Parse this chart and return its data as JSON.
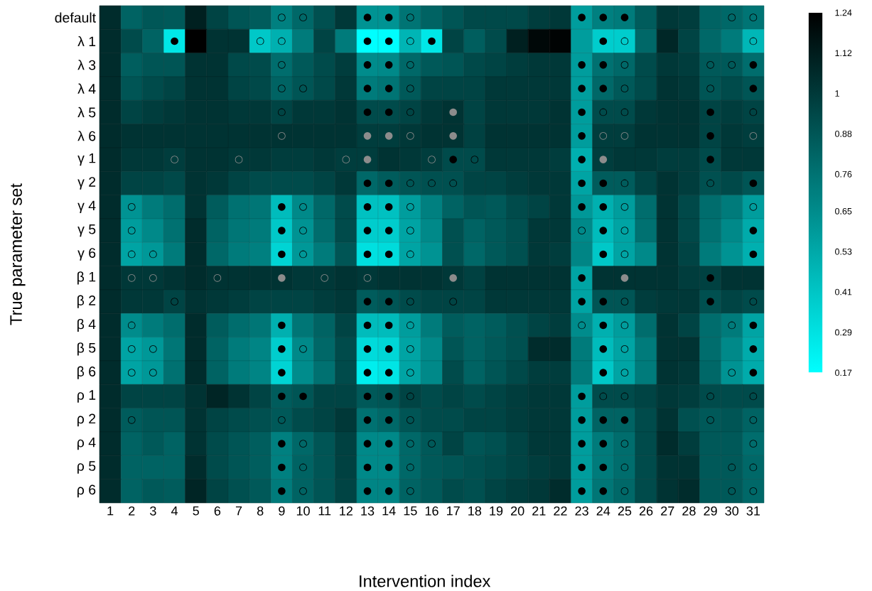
{
  "chart_data": {
    "type": "heatmap",
    "xlabel": "Intervention index",
    "ylabel": "True parameter set",
    "categories": [
      "1",
      "2",
      "3",
      "4",
      "5",
      "6",
      "7",
      "8",
      "9",
      "10",
      "11",
      "12",
      "13",
      "14",
      "15",
      "16",
      "17",
      "18",
      "19",
      "20",
      "21",
      "22",
      "23",
      "24",
      "25",
      "26",
      "27",
      "28",
      "29",
      "30",
      "31"
    ],
    "y_categories": [
      "default",
      "λ 1",
      "λ 3",
      "λ 4",
      "λ 5",
      "λ 6",
      "γ 1",
      "γ 2",
      "γ 4",
      "γ 5",
      "γ 6",
      "β 1",
      "β 2",
      "β 4",
      "β 5",
      "β 6",
      "ρ 1",
      "ρ 2",
      "ρ 4",
      "ρ 5",
      "ρ 6"
    ],
    "clim": [
      0.17,
      1.24
    ],
    "cticks": [
      0.17,
      0.29,
      0.41,
      0.53,
      0.65,
      0.76,
      0.88,
      1,
      1.12,
      1.24
    ],
    "cells": [
      [
        1.05,
        0.82,
        0.87,
        0.86,
        1.1,
        0.95,
        0.88,
        0.85,
        0.7,
        0.8,
        0.9,
        1.0,
        0.62,
        0.62,
        0.75,
        0.82,
        0.88,
        0.93,
        0.93,
        0.93,
        0.98,
        1.0,
        0.58,
        0.7,
        0.72,
        0.85,
        1.0,
        0.98,
        0.82,
        0.8,
        0.75
      ],
      [
        1.05,
        0.92,
        0.82,
        0.27,
        1.24,
        1.02,
        1.02,
        0.4,
        0.5,
        0.72,
        0.95,
        0.72,
        0.17,
        0.18,
        0.48,
        0.27,
        0.95,
        0.84,
        0.92,
        1.1,
        1.2,
        1.22,
        0.58,
        0.38,
        0.38,
        0.8,
        1.07,
        0.95,
        0.8,
        0.72,
        0.47
      ],
      [
        1.05,
        0.84,
        0.88,
        0.88,
        1.02,
        1.02,
        0.93,
        0.92,
        0.78,
        0.86,
        0.92,
        0.98,
        0.65,
        0.66,
        0.8,
        0.86,
        0.88,
        0.93,
        0.95,
        0.98,
        1.0,
        1.0,
        0.58,
        0.76,
        0.8,
        0.92,
        1.0,
        0.98,
        0.86,
        0.86,
        0.78
      ],
      [
        1.05,
        0.88,
        0.92,
        0.95,
        1.02,
        1.02,
        0.95,
        0.93,
        0.82,
        0.88,
        0.93,
        1.0,
        0.72,
        0.75,
        0.86,
        0.95,
        0.95,
        0.95,
        1.0,
        1.0,
        1.0,
        1.0,
        0.58,
        0.8,
        0.86,
        0.92,
        1.02,
        1.0,
        0.88,
        0.92,
        0.88
      ],
      [
        1.05,
        0.95,
        0.98,
        1.0,
        1.02,
        1.02,
        1.0,
        1.0,
        0.95,
        1.0,
        1.0,
        1.02,
        0.92,
        0.92,
        0.95,
        1.0,
        1.02,
        0.95,
        1.0,
        1.0,
        1.0,
        1.02,
        0.58,
        0.92,
        0.92,
        1.0,
        1.02,
        1.02,
        0.95,
        0.98,
        0.95
      ],
      [
        1.05,
        1.02,
        1.02,
        1.02,
        1.02,
        1.02,
        1.02,
        1.02,
        1.02,
        1.02,
        1.02,
        1.02,
        0.98,
        0.98,
        1.0,
        1.02,
        1.02,
        0.96,
        1.02,
        1.02,
        1.02,
        1.02,
        0.58,
        0.98,
        0.98,
        1.02,
        1.02,
        1.02,
        0.95,
        1.0,
        0.98
      ],
      [
        1.05,
        1.0,
        1.0,
        0.98,
        1.02,
        1.02,
        1.0,
        1.0,
        0.98,
        0.98,
        1.0,
        0.98,
        0.98,
        1.02,
        1.0,
        0.98,
        0.92,
        0.92,
        1.0,
        1.0,
        1.0,
        0.98,
        0.5,
        0.98,
        1.0,
        1.0,
        0.98,
        0.98,
        0.92,
        1.0,
        1.0
      ],
      [
        1.05,
        0.95,
        0.95,
        0.93,
        1.02,
        1.0,
        0.95,
        0.92,
        0.92,
        0.92,
        0.95,
        1.0,
        0.8,
        0.85,
        0.88,
        0.9,
        0.9,
        0.95,
        0.95,
        0.98,
        1.0,
        1.0,
        0.55,
        0.85,
        0.85,
        0.95,
        1.02,
        0.98,
        0.9,
        0.93,
        0.88
      ],
      [
        1.05,
        0.62,
        0.72,
        0.78,
        1.02,
        0.85,
        0.76,
        0.74,
        0.45,
        0.66,
        0.8,
        0.92,
        0.43,
        0.43,
        0.58,
        0.7,
        0.82,
        0.88,
        0.86,
        0.92,
        0.95,
        1.0,
        0.6,
        0.5,
        0.58,
        0.78,
        1.02,
        0.93,
        0.78,
        0.72,
        0.58
      ],
      [
        1.05,
        0.58,
        0.66,
        0.76,
        1.05,
        0.82,
        0.74,
        0.72,
        0.4,
        0.62,
        0.78,
        0.92,
        0.38,
        0.38,
        0.55,
        0.66,
        0.9,
        0.82,
        0.86,
        0.9,
        1.0,
        1.0,
        0.66,
        0.45,
        0.55,
        0.76,
        1.02,
        0.93,
        0.76,
        0.66,
        0.52
      ],
      [
        1.05,
        0.55,
        0.6,
        0.72,
        1.05,
        0.8,
        0.72,
        0.7,
        0.35,
        0.6,
        0.72,
        0.88,
        0.3,
        0.32,
        0.55,
        0.62,
        0.9,
        0.8,
        0.86,
        0.9,
        1.0,
        0.98,
        0.68,
        0.4,
        0.55,
        0.66,
        1.02,
        0.95,
        0.72,
        0.62,
        0.5
      ],
      [
        1.05,
        1.0,
        1.0,
        1.02,
        1.05,
        1.02,
        1.02,
        1.02,
        1.02,
        1.0,
        1.0,
        1.02,
        1.0,
        1.02,
        1.02,
        1.02,
        1.0,
        0.96,
        1.02,
        1.02,
        1.02,
        1.02,
        0.55,
        1.02,
        1.02,
        1.02,
        1.02,
        0.98,
        0.96,
        1.02,
        1.02
      ],
      [
        1.05,
        1.0,
        1.0,
        0.95,
        1.02,
        1.0,
        0.98,
        0.95,
        0.95,
        0.95,
        0.98,
        1.0,
        0.85,
        0.88,
        0.92,
        0.95,
        0.95,
        0.95,
        1.0,
        1.0,
        1.0,
        1.0,
        0.55,
        0.88,
        0.88,
        0.98,
        1.0,
        1.0,
        0.9,
        0.95,
        0.92
      ],
      [
        1.05,
        0.65,
        0.72,
        0.78,
        1.05,
        0.85,
        0.78,
        0.74,
        0.5,
        0.74,
        0.82,
        0.95,
        0.45,
        0.45,
        0.58,
        0.72,
        0.85,
        0.82,
        0.85,
        0.9,
        0.95,
        0.98,
        0.65,
        0.5,
        0.58,
        0.78,
        1.02,
        0.95,
        0.78,
        0.72,
        0.55
      ],
      [
        1.05,
        0.55,
        0.6,
        0.74,
        1.05,
        0.82,
        0.72,
        0.68,
        0.38,
        0.66,
        0.8,
        0.92,
        0.32,
        0.34,
        0.55,
        0.66,
        0.88,
        0.82,
        0.86,
        0.9,
        1.05,
        1.05,
        0.72,
        0.45,
        0.55,
        0.72,
        1.02,
        1.02,
        0.78,
        0.66,
        0.52
      ],
      [
        1.05,
        0.55,
        0.6,
        0.76,
        1.05,
        0.82,
        0.72,
        0.68,
        0.35,
        0.65,
        0.76,
        0.92,
        0.24,
        0.28,
        0.55,
        0.66,
        0.92,
        0.82,
        0.88,
        0.93,
        0.98,
        0.98,
        0.72,
        0.4,
        0.55,
        0.72,
        1.02,
        1.0,
        0.8,
        0.62,
        0.52
      ],
      [
        1.05,
        0.95,
        0.95,
        0.95,
        1.02,
        1.08,
        1.02,
        0.95,
        0.85,
        0.88,
        0.95,
        0.95,
        0.86,
        0.88,
        0.95,
        0.92,
        0.95,
        0.92,
        0.95,
        0.98,
        1.0,
        1.0,
        0.58,
        0.92,
        0.92,
        0.95,
        1.0,
        0.98,
        0.92,
        0.92,
        0.92
      ],
      [
        1.05,
        0.85,
        0.88,
        0.88,
        1.02,
        0.95,
        0.92,
        0.9,
        0.86,
        0.92,
        0.95,
        1.0,
        0.76,
        0.8,
        0.88,
        0.92,
        0.92,
        0.95,
        0.95,
        0.98,
        1.0,
        1.0,
        0.58,
        0.82,
        0.82,
        0.92,
        1.02,
        0.9,
        0.86,
        0.88,
        0.82
      ],
      [
        1.05,
        0.82,
        0.86,
        0.82,
        1.02,
        0.92,
        0.88,
        0.84,
        0.7,
        0.8,
        0.88,
        0.96,
        0.66,
        0.66,
        0.8,
        0.86,
        0.95,
        0.88,
        0.9,
        0.95,
        1.0,
        1.0,
        0.58,
        0.72,
        0.78,
        0.92,
        1.05,
        0.98,
        0.86,
        0.86,
        0.78
      ],
      [
        1.05,
        0.82,
        0.82,
        0.82,
        1.05,
        0.92,
        0.88,
        0.84,
        0.7,
        0.82,
        0.88,
        0.96,
        0.66,
        0.66,
        0.8,
        0.86,
        0.88,
        0.9,
        0.92,
        0.95,
        0.98,
        1.0,
        0.58,
        0.72,
        0.78,
        0.92,
        1.02,
        1.02,
        0.86,
        0.86,
        0.8
      ],
      [
        1.05,
        0.82,
        0.86,
        0.85,
        1.08,
        0.95,
        0.9,
        0.86,
        0.72,
        0.82,
        0.88,
        0.95,
        0.68,
        0.68,
        0.82,
        0.86,
        0.92,
        0.9,
        0.95,
        0.98,
        1.0,
        1.05,
        0.58,
        0.74,
        0.8,
        0.92,
        1.02,
        1.05,
        0.86,
        0.86,
        0.8
      ]
    ],
    "cell_labels": [
      [
        null,
        null,
        null,
        null,
        null,
        null,
        null,
        null,
        "○",
        "○",
        null,
        null,
        "●",
        "●",
        "○",
        null,
        null,
        null,
        null,
        null,
        null,
        null,
        "●",
        "●",
        "●",
        null,
        null,
        null,
        null,
        "○",
        "○"
      ],
      [
        null,
        null,
        null,
        "●",
        null,
        null,
        null,
        "○",
        "○",
        null,
        null,
        null,
        "●",
        "●",
        "○",
        "●",
        null,
        null,
        null,
        null,
        null,
        null,
        null,
        "●",
        "○",
        null,
        null,
        null,
        null,
        null,
        "○"
      ],
      [
        null,
        null,
        null,
        null,
        null,
        null,
        null,
        null,
        "○",
        null,
        null,
        null,
        "●",
        "●",
        "○",
        null,
        null,
        null,
        null,
        null,
        null,
        null,
        "●",
        "●",
        "○",
        null,
        null,
        null,
        "○",
        "○",
        "●"
      ],
      [
        null,
        null,
        null,
        null,
        null,
        null,
        null,
        null,
        "○",
        "○",
        null,
        null,
        "●",
        "●",
        "○",
        null,
        null,
        null,
        null,
        null,
        null,
        null,
        "●",
        "●",
        "○",
        null,
        null,
        null,
        "○",
        null,
        "●"
      ],
      [
        null,
        null,
        null,
        null,
        null,
        null,
        null,
        null,
        "○",
        null,
        null,
        null,
        "●",
        "●",
        "○",
        null,
        "●",
        null,
        null,
        null,
        null,
        null,
        "●",
        "○",
        "○",
        null,
        null,
        null,
        "●",
        null,
        "○"
      ],
      [
        null,
        null,
        null,
        null,
        null,
        null,
        null,
        null,
        "○",
        null,
        null,
        null,
        "●",
        "●",
        "○",
        null,
        "●",
        null,
        null,
        null,
        null,
        null,
        "●",
        "○",
        "○",
        null,
        null,
        null,
        "●",
        null,
        "○"
      ],
      [
        null,
        null,
        null,
        "○",
        null,
        null,
        "○",
        null,
        null,
        null,
        null,
        "○",
        "●",
        null,
        null,
        "○",
        "●",
        "○",
        null,
        null,
        null,
        null,
        "●",
        "●",
        null,
        null,
        null,
        null,
        "●",
        null,
        null
      ],
      [
        null,
        null,
        null,
        null,
        null,
        null,
        null,
        null,
        null,
        null,
        null,
        null,
        "●",
        "●",
        "○",
        "○",
        "○",
        null,
        null,
        null,
        null,
        null,
        "●",
        "●",
        "○",
        null,
        null,
        null,
        "○",
        null,
        "●"
      ],
      [
        null,
        "○",
        null,
        null,
        null,
        null,
        null,
        null,
        "●",
        "○",
        null,
        null,
        "●",
        "●",
        "○",
        null,
        null,
        null,
        null,
        null,
        null,
        null,
        "●",
        "●",
        "○",
        null,
        null,
        null,
        null,
        null,
        "○"
      ],
      [
        null,
        "○",
        null,
        null,
        null,
        null,
        null,
        null,
        "●",
        "○",
        null,
        null,
        "●",
        "●",
        "○",
        null,
        null,
        null,
        null,
        null,
        null,
        null,
        "○",
        "●",
        "○",
        null,
        null,
        null,
        null,
        null,
        "●"
      ],
      [
        null,
        "○",
        "○",
        null,
        null,
        null,
        null,
        null,
        "●",
        "○",
        null,
        null,
        "●",
        "●",
        "○",
        null,
        null,
        null,
        null,
        null,
        null,
        null,
        null,
        "●",
        "○",
        null,
        null,
        null,
        null,
        null,
        "●"
      ],
      [
        null,
        "○",
        "○",
        null,
        null,
        "○",
        null,
        null,
        "●",
        null,
        "○",
        null,
        "○",
        null,
        null,
        null,
        "●",
        null,
        null,
        null,
        null,
        null,
        "●",
        null,
        "●",
        null,
        null,
        null,
        "●",
        null,
        null
      ],
      [
        null,
        null,
        null,
        "○",
        null,
        null,
        null,
        null,
        null,
        null,
        null,
        null,
        "●",
        "●",
        "○",
        null,
        "○",
        null,
        null,
        null,
        null,
        null,
        "●",
        "●",
        "○",
        null,
        null,
        null,
        "●",
        null,
        "○"
      ],
      [
        null,
        "○",
        null,
        null,
        null,
        null,
        null,
        null,
        "●",
        null,
        null,
        null,
        "●",
        "●",
        "○",
        null,
        null,
        null,
        null,
        null,
        null,
        null,
        "○",
        "●",
        "○",
        null,
        null,
        null,
        null,
        "○",
        "●"
      ],
      [
        null,
        "○",
        "○",
        null,
        null,
        null,
        null,
        null,
        "●",
        "○",
        null,
        null,
        "●",
        "●",
        "○",
        null,
        null,
        null,
        null,
        null,
        null,
        null,
        null,
        "●",
        "○",
        null,
        null,
        null,
        null,
        null,
        "●"
      ],
      [
        null,
        "○",
        "○",
        null,
        null,
        null,
        null,
        null,
        "●",
        null,
        null,
        null,
        "●",
        "●",
        "○",
        null,
        null,
        null,
        null,
        null,
        null,
        null,
        null,
        "●",
        "○",
        null,
        null,
        null,
        null,
        "○",
        "●"
      ],
      [
        null,
        null,
        null,
        null,
        null,
        null,
        null,
        null,
        "●",
        "●",
        null,
        null,
        "●",
        "●",
        "○",
        null,
        null,
        null,
        null,
        null,
        null,
        null,
        "●",
        "○",
        "○",
        null,
        null,
        null,
        "○",
        null,
        "○"
      ],
      [
        null,
        "○",
        null,
        null,
        null,
        null,
        null,
        null,
        "○",
        null,
        null,
        null,
        "●",
        "●",
        "○",
        null,
        null,
        null,
        null,
        null,
        null,
        null,
        "●",
        "●",
        "●",
        null,
        null,
        null,
        "○",
        null,
        "○"
      ],
      [
        null,
        null,
        null,
        null,
        null,
        null,
        null,
        null,
        "●",
        "○",
        null,
        null,
        "●",
        "●",
        "○",
        "○",
        null,
        null,
        null,
        null,
        null,
        null,
        "●",
        "●",
        "○",
        null,
        null,
        null,
        null,
        null,
        "○"
      ],
      [
        null,
        null,
        null,
        null,
        null,
        null,
        null,
        null,
        "●",
        "○",
        null,
        null,
        "●",
        "●",
        "○",
        null,
        null,
        null,
        null,
        null,
        null,
        null,
        "●",
        "●",
        "○",
        null,
        null,
        null,
        null,
        "○",
        "○"
      ],
      [
        null,
        null,
        null,
        null,
        null,
        null,
        null,
        null,
        "●",
        "○",
        null,
        null,
        "●",
        "●",
        "○",
        null,
        null,
        null,
        null,
        null,
        null,
        null,
        "●",
        "●",
        "○",
        null,
        null,
        null,
        null,
        "○",
        "○"
      ]
    ]
  }
}
